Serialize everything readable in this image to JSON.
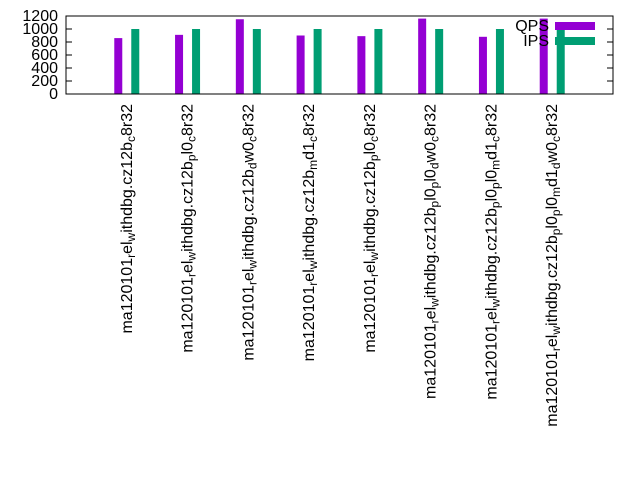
{
  "chart_data": {
    "type": "bar",
    "title": "",
    "xlabel": "",
    "ylabel": "",
    "ylim": [
      0,
      1200
    ],
    "yticks": [
      0,
      200,
      400,
      600,
      800,
      1000,
      1200
    ],
    "grid": false,
    "legend_position": "top-right",
    "categories": [
      "ma120101_rel_withdbg.cz12b_c8r32",
      "ma120101_rel_withdbg.cz12b_pl0_c8r32",
      "ma120101_rel_withdbg.cz12b_dw0_c8r32",
      "ma120101_rel_withdbg.cz12b_md1_c8r32",
      "ma120101_rel_withdbg.cz12b_pl0_c8r32",
      "ma120101_rel_withdbg.cz12b_pl0_pl0_dw0_c8r32",
      "ma120101_rel_withdbg.cz12b_pl0_pl0_md1_c8r32",
      "ma120101_rel_withdbg.cz12b_pl0_pl0_md1_dw0_c8r32"
    ],
    "category_segments": [
      [
        [
          "ma120101",
          ""
        ],
        [
          "r",
          "sub"
        ],
        [
          "el",
          ""
        ],
        [
          "w",
          "sub"
        ],
        [
          "ithdbg.cz12b",
          ""
        ],
        [
          "c",
          "sub"
        ],
        [
          "8r32",
          ""
        ]
      ],
      [
        [
          "ma120101",
          ""
        ],
        [
          "r",
          "sub"
        ],
        [
          "el",
          ""
        ],
        [
          "w",
          "sub"
        ],
        [
          "ithdbg.cz12b",
          ""
        ],
        [
          "p",
          "sub"
        ],
        [
          "l0",
          ""
        ],
        [
          "c",
          "sub"
        ],
        [
          "8r32",
          ""
        ]
      ],
      [
        [
          "ma120101",
          ""
        ],
        [
          "r",
          "sub"
        ],
        [
          "el",
          ""
        ],
        [
          "w",
          "sub"
        ],
        [
          "ithdbg.cz12b",
          ""
        ],
        [
          "d",
          "sub"
        ],
        [
          "w0",
          ""
        ],
        [
          "c",
          "sub"
        ],
        [
          "8r32",
          ""
        ]
      ],
      [
        [
          "ma120101",
          ""
        ],
        [
          "r",
          "sub"
        ],
        [
          "el",
          ""
        ],
        [
          "w",
          "sub"
        ],
        [
          "ithdbg.cz12b",
          ""
        ],
        [
          "m",
          "sub"
        ],
        [
          "d1",
          ""
        ],
        [
          "c",
          "sub"
        ],
        [
          "8r32",
          ""
        ]
      ],
      [
        [
          "ma120101",
          ""
        ],
        [
          "r",
          "sub"
        ],
        [
          "el",
          ""
        ],
        [
          "w",
          "sub"
        ],
        [
          "ithdbg.cz12b",
          ""
        ],
        [
          "p",
          "sub"
        ],
        [
          "l0",
          ""
        ],
        [
          "c",
          "sub"
        ],
        [
          "8r32",
          ""
        ]
      ],
      [
        [
          "ma120101",
          ""
        ],
        [
          "r",
          "sub"
        ],
        [
          "el",
          ""
        ],
        [
          "w",
          "sub"
        ],
        [
          "ithdbg.cz12b",
          ""
        ],
        [
          "p",
          "sub"
        ],
        [
          "l0",
          ""
        ],
        [
          "p",
          "sub"
        ],
        [
          "l0",
          ""
        ],
        [
          "d",
          "sub"
        ],
        [
          "w0",
          ""
        ],
        [
          "c",
          "sub"
        ],
        [
          "8r32",
          ""
        ]
      ],
      [
        [
          "ma120101",
          ""
        ],
        [
          "r",
          "sub"
        ],
        [
          "el",
          ""
        ],
        [
          "w",
          "sub"
        ],
        [
          "ithdbg.cz12b",
          ""
        ],
        [
          "p",
          "sub"
        ],
        [
          "l0",
          ""
        ],
        [
          "p",
          "sub"
        ],
        [
          "l0",
          ""
        ],
        [
          "m",
          "sub"
        ],
        [
          "d1",
          ""
        ],
        [
          "c",
          "sub"
        ],
        [
          "8r32",
          ""
        ]
      ],
      [
        [
          "ma120101",
          ""
        ],
        [
          "r",
          "sub"
        ],
        [
          "el",
          ""
        ],
        [
          "w",
          "sub"
        ],
        [
          "ithdbg.cz12b",
          ""
        ],
        [
          "p",
          "sub"
        ],
        [
          "l0",
          ""
        ],
        [
          "p",
          "sub"
        ],
        [
          "l0",
          ""
        ],
        [
          "m",
          "sub"
        ],
        [
          "d1",
          ""
        ],
        [
          "d",
          "sub"
        ],
        [
          "w0",
          ""
        ],
        [
          "c",
          "sub"
        ],
        [
          "8r32",
          ""
        ]
      ]
    ],
    "series": [
      {
        "name": "QPS",
        "color": "#9400d3",
        "values": [
          860,
          910,
          1150,
          900,
          890,
          1160,
          880,
          1160
        ]
      },
      {
        "name": "IPS",
        "color": "#009e73",
        "values": [
          1000,
          1000,
          1000,
          1000,
          1000,
          1000,
          1000,
          1000
        ]
      }
    ]
  }
}
